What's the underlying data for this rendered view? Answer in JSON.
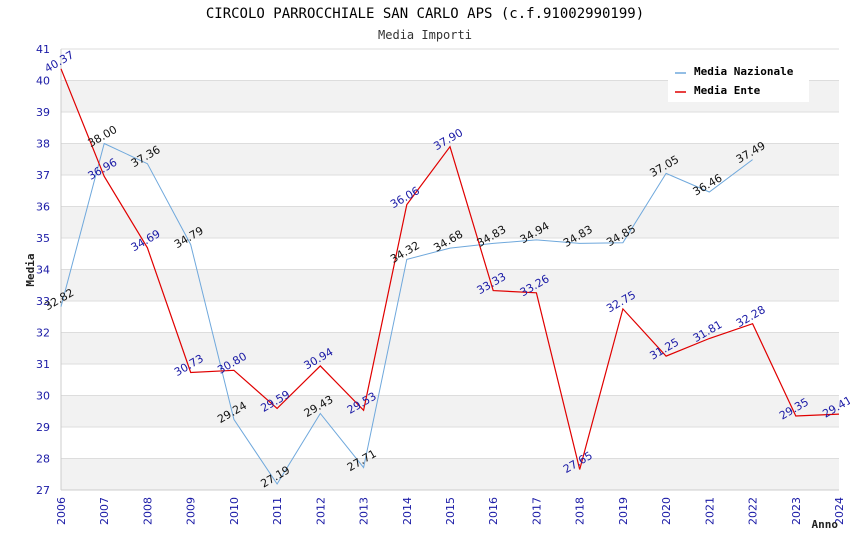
{
  "chart_data": {
    "type": "line",
    "title": "CIRCOLO PARROCCHIALE SAN CARLO APS (c.f.91002990199)",
    "subtitle": "Media Importi",
    "xlabel": "Anno",
    "ylabel": "Media",
    "ylim": [
      27,
      41
    ],
    "yticks": [
      "27",
      "28",
      "29",
      "30",
      "31",
      "32",
      "33",
      "34",
      "35",
      "36",
      "37",
      "38",
      "39",
      "40",
      "41"
    ],
    "categories": [
      "2006",
      "2007",
      "2008",
      "2009",
      "2010",
      "2011",
      "2012",
      "2013",
      "2014",
      "2015",
      "2016",
      "2017",
      "2018",
      "2019",
      "2020",
      "2021",
      "2022",
      "2023",
      "2024"
    ],
    "series": [
      {
        "name": "Media Nazionale",
        "color": "#6fa8dc",
        "values": [
          32.82,
          38.0,
          37.36,
          34.79,
          29.24,
          27.19,
          29.43,
          27.71,
          34.32,
          34.68,
          34.83,
          34.94,
          34.83,
          34.85,
          37.05,
          36.46,
          37.49,
          null,
          null
        ],
        "labels": [
          "32.82",
          "38.00",
          "37.36",
          "34.79",
          "29.24",
          "27.19",
          "29.43",
          "27.71",
          "34.32",
          "34.68",
          "34.83",
          "34.94",
          "34.83",
          "34.85",
          "37.05",
          "36.46",
          "37.49",
          null,
          null
        ]
      },
      {
        "name": "Media Ente",
        "color": "#e00000",
        "values": [
          40.37,
          36.96,
          34.69,
          30.73,
          30.8,
          29.59,
          30.94,
          29.53,
          36.06,
          37.9,
          33.33,
          33.26,
          27.65,
          32.75,
          31.25,
          31.81,
          32.28,
          29.35,
          29.41
        ],
        "labels": [
          "40.37",
          "36.96",
          "34.69",
          "30.73",
          "30.80",
          "29.59",
          "30.94",
          "29.53",
          "36.06",
          "37.90",
          "33.33",
          "33.26",
          "27.65",
          "32.75",
          "31.25",
          "31.81",
          "32.28",
          "29.35",
          "29.41"
        ]
      }
    ],
    "legend_position": "top-right"
  }
}
